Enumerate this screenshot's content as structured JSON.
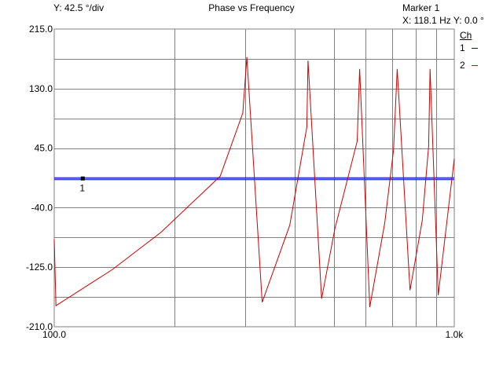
{
  "header": {
    "y_scale": "Y: 42.5 °/div",
    "title": "Phase vs Frequency",
    "marker_title": "Marker 1",
    "marker_readout": "X: 118.1  Hz Y: 0.0  °"
  },
  "legend": {
    "heading": "Ch",
    "items": [
      {
        "label": "1",
        "color": "#0000c0"
      },
      {
        "label": "2",
        "color": "#d00000"
      }
    ]
  },
  "chart_data": {
    "type": "line",
    "title": "Phase vs Frequency",
    "xscale": "log",
    "xlim": [
      100,
      1000
    ],
    "ylim": [
      -210,
      215
    ],
    "x_tick_labels": [
      "100.0",
      "1.0k"
    ],
    "y_ticks": [
      215,
      130,
      45,
      -40,
      -125,
      -210
    ],
    "y_tick_labels": [
      "215.0",
      "130.0",
      "45.0",
      "-40.0",
      "-125.0",
      "-210.0"
    ],
    "grid": true,
    "background": "#ffffff",
    "grid_color": "#808080",
    "series": [
      {
        "name": "1",
        "color": "#0000c0",
        "x": [
          100,
          1000
        ],
        "y": [
          0,
          0
        ]
      },
      {
        "name": "2",
        "color": "#d00000",
        "x": [
          100,
          101,
          140,
          185,
          260,
          296,
          303,
          331,
          388,
          428,
          431,
          466,
          503,
          572,
          580,
          615,
          670,
          705,
          720,
          775,
          832,
          863,
          870,
          912,
          1000
        ],
        "y": [
          -85,
          -180,
          -128,
          -75,
          5,
          95,
          175,
          -175,
          -65,
          75,
          170,
          -170,
          -70,
          55,
          158,
          -182,
          -62,
          42,
          158,
          -158,
          -58,
          48,
          158,
          -165,
          30
        ]
      }
    ],
    "marker": {
      "label": "1",
      "x": 118.1,
      "y": 0.0
    }
  }
}
